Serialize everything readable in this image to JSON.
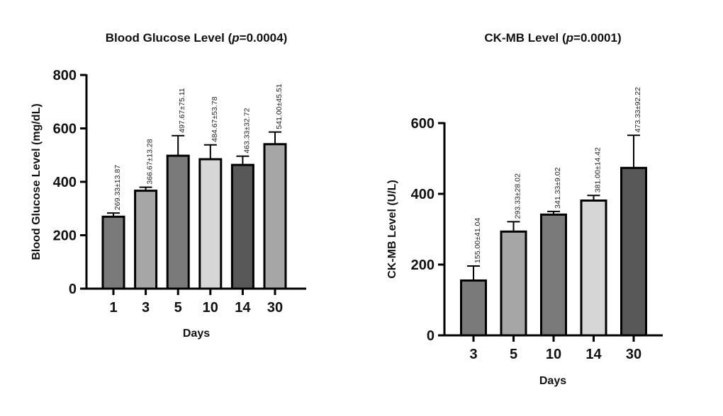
{
  "chart_data": [
    {
      "type": "bar",
      "title": "Blood Glucose  Level (",
      "title_p": "p",
      "title_value": "=0.0004)",
      "xlabel": "Days",
      "ylabel": "Blood Glucose Level (mg/dL)",
      "ylim": [
        0,
        800
      ],
      "yticks": [
        0,
        200,
        400,
        600,
        800
      ],
      "categories": [
        "1",
        "3",
        "5",
        "10",
        "14",
        "30"
      ],
      "values": [
        269.33,
        366.67,
        497.67,
        484.67,
        463.33,
        541.0
      ],
      "errors": [
        13.87,
        13.28,
        75.11,
        53.78,
        32.72,
        45.51
      ],
      "data_labels": [
        "269.33±13.87",
        "366.67±13.28",
        "497.67±75.11",
        "484.67±53.78",
        "463.33±32.72",
        "541.00±45.51"
      ],
      "bar_colors": [
        "#7a7a7a",
        "#a6a6a6",
        "#7a7a7a",
        "#d6d6d6",
        "#585858",
        "#a6a6a6"
      ]
    },
    {
      "type": "bar",
      "title": "CK-MB Level (",
      "title_p": "p",
      "title_value": "=0.0001)",
      "xlabel": "Days",
      "ylabel": "CK-MB Level (U/L)",
      "ylim": [
        0,
        600
      ],
      "yticks": [
        0,
        200,
        400,
        600
      ],
      "categories": [
        "3",
        "5",
        "10",
        "14",
        "30"
      ],
      "values": [
        155.0,
        293.33,
        341.33,
        381.0,
        473.33
      ],
      "errors": [
        41.04,
        28.02,
        9.02,
        14.42,
        92.22
      ],
      "data_labels": [
        "155.00±41.04",
        "293.33±28.02",
        "341.33±9.02",
        "381.00±14.42",
        "473.33±92.22"
      ],
      "bar_colors": [
        "#7a7a7a",
        "#a6a6a6",
        "#7a7a7a",
        "#d6d6d6",
        "#585858"
      ]
    }
  ]
}
